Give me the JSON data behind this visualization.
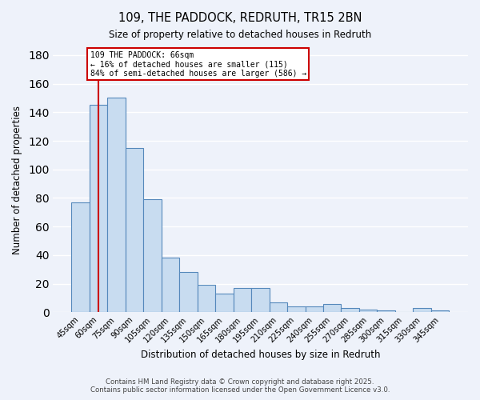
{
  "title": "109, THE PADDOCK, REDRUTH, TR15 2BN",
  "subtitle": "Size of property relative to detached houses in Redruth",
  "xlabel": "Distribution of detached houses by size in Redruth",
  "ylabel": "Number of detached properties",
  "bar_color": "#c8dcf0",
  "bar_edge_color": "#5588bb",
  "background_color": "#eef2fa",
  "grid_color": "#ffffff",
  "categories": [
    "45sqm",
    "60sqm",
    "75sqm",
    "90sqm",
    "105sqm",
    "120sqm",
    "135sqm",
    "150sqm",
    "165sqm",
    "180sqm",
    "195sqm",
    "210sqm",
    "225sqm",
    "240sqm",
    "255sqm",
    "270sqm",
    "285sqm",
    "300sqm",
    "315sqm",
    "330sqm",
    "345sqm"
  ],
  "values": [
    77,
    145,
    150,
    115,
    79,
    38,
    28,
    19,
    13,
    17,
    17,
    7,
    4,
    4,
    6,
    3,
    2,
    1,
    0,
    3,
    1
  ],
  "ylim": [
    0,
    185
  ],
  "yticks": [
    0,
    20,
    40,
    60,
    80,
    100,
    120,
    140,
    160,
    180
  ],
  "marker_bar_index": 1,
  "marker_color": "#cc0000",
  "marker_label_line1": "109 THE PADDOCK: 66sqm",
  "marker_label_line2": "← 16% of detached houses are smaller (115)",
  "marker_label_line3": "84% of semi-detached houses are larger (586) →",
  "footer_line1": "Contains HM Land Registry data © Crown copyright and database right 2025.",
  "footer_line2": "Contains public sector information licensed under the Open Government Licence v3.0."
}
